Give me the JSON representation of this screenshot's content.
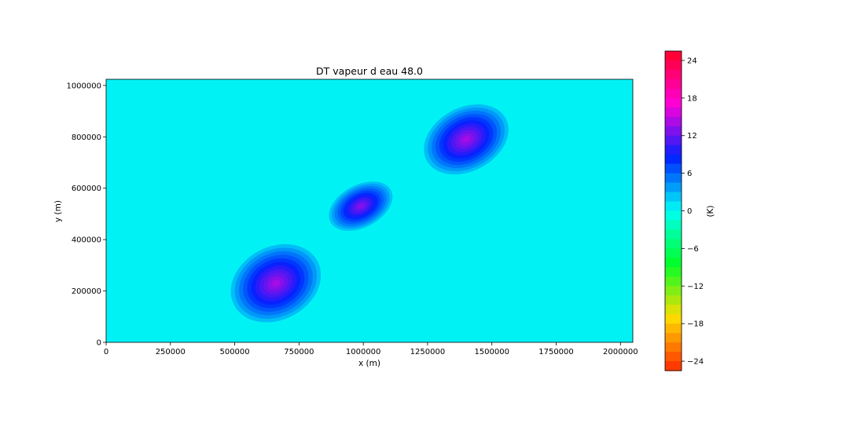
{
  "chart_data": {
    "type": "heatmap",
    "subtype": "filled-contour",
    "title": "DT vapeur d eau 48.0",
    "xlabel": "x (m)",
    "ylabel": "y (m)",
    "xlim": [
      0,
      2048000
    ],
    "ylim": [
      0,
      1024000
    ],
    "x_ticks": [
      0,
      250000,
      500000,
      750000,
      1000000,
      1250000,
      1500000,
      1750000,
      2000000
    ],
    "x_tick_labels": [
      "0",
      "250000",
      "500000",
      "750000",
      "1000000",
      "1250000",
      "1500000",
      "1750000",
      "2000000"
    ],
    "y_ticks": [
      0,
      200000,
      400000,
      600000,
      800000,
      1000000
    ],
    "y_tick_labels": [
      "0",
      "200000",
      "400000",
      "600000",
      "800000",
      "1000000"
    ],
    "background_value": 0.5,
    "blobs": [
      {
        "x": 1400000,
        "y": 790000,
        "rx": 190000,
        "ry": 135000,
        "peak": 14
      },
      {
        "x": 990000,
        "y": 530000,
        "rx": 145000,
        "ry": 90000,
        "peak": 13
      },
      {
        "x": 660000,
        "y": 230000,
        "rx": 200000,
        "ry": 155000,
        "peak": 14
      }
    ],
    "colorbar": {
      "label": "(K)",
      "range": [
        -25.5,
        25.5
      ],
      "ticks": [
        24,
        18,
        12,
        6,
        0,
        -6,
        -12,
        -18,
        -24
      ],
      "tick_labels": [
        "24",
        "18",
        "12",
        "6",
        "0",
        "−6",
        "−12",
        "−18",
        "−24"
      ],
      "colormap": "gist_rainbow",
      "colors_top_to_bottom": [
        "#ff0028",
        "#ff00d8",
        "#0022ff",
        "#00fff4",
        "#00ff28",
        "#ffdd00",
        "#ff2a00"
      ]
    }
  }
}
